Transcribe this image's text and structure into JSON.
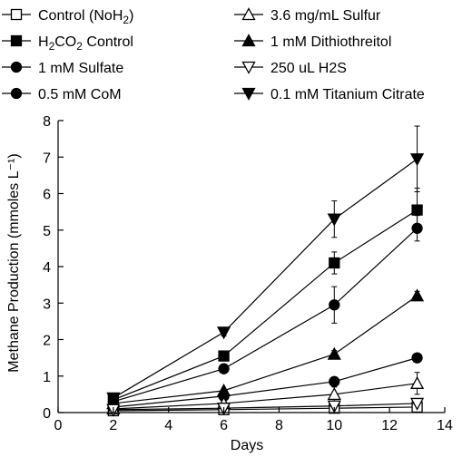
{
  "chart_data": {
    "type": "line",
    "title": "",
    "xlabel": "Days",
    "ylabel": "Methane Production (mmoles L⁻¹)",
    "xlim": [
      0,
      14
    ],
    "ylim": [
      0,
      8
    ],
    "xticks": [
      0,
      2,
      4,
      6,
      8,
      10,
      12,
      14
    ],
    "yticks": [
      0,
      1,
      2,
      3,
      4,
      5,
      6,
      7,
      8
    ],
    "grid": false,
    "legend_position": "top",
    "x": [
      2,
      6,
      10,
      13
    ],
    "series": [
      {
        "name": "Control (NoH2)",
        "marker": "square-open",
        "values": [
          0.05,
          0.08,
          0.12,
          0.15
        ],
        "errors": [
          0.02,
          0.02,
          0.03,
          0.05
        ]
      },
      {
        "name": "H2CO2 Control",
        "marker": "square-filled",
        "values": [
          0.35,
          1.55,
          4.1,
          5.55
        ],
        "errors": [
          0.05,
          0.1,
          0.3,
          0.6
        ]
      },
      {
        "name": "1 mM Sulfate",
        "marker": "circle-filled",
        "values": [
          0.3,
          1.2,
          2.95,
          5.05
        ],
        "errors": [
          0.05,
          0.08,
          0.5,
          0.35
        ]
      },
      {
        "name": "0.5 mM CoM",
        "marker": "circle-filled",
        "values": [
          0.15,
          0.45,
          0.85,
          1.5
        ],
        "errors": [
          0.03,
          0.05,
          0.08,
          0.1
        ]
      },
      {
        "name": "3.6 mg/mL Sulfur",
        "marker": "triangle-up-open",
        "values": [
          0.1,
          0.25,
          0.5,
          0.8
        ],
        "errors": [
          0.02,
          0.05,
          0.2,
          0.3
        ]
      },
      {
        "name": "1 mM Dithiothreitol",
        "marker": "triangle-up-filled",
        "values": [
          0.25,
          0.6,
          1.6,
          3.2
        ],
        "errors": [
          0.04,
          0.05,
          0.1,
          0.12
        ]
      },
      {
        "name": "250 uL H2S",
        "marker": "triangle-down-open",
        "values": [
          0.08,
          0.12,
          0.18,
          0.25
        ],
        "errors": [
          0.02,
          0.02,
          0.03,
          0.05
        ]
      },
      {
        "name": "0.1 mM Titanium Citrate",
        "marker": "triangle-down-filled",
        "values": [
          0.4,
          2.2,
          5.3,
          6.95
        ],
        "errors": [
          0.05,
          0.1,
          0.5,
          0.9
        ]
      }
    ]
  }
}
